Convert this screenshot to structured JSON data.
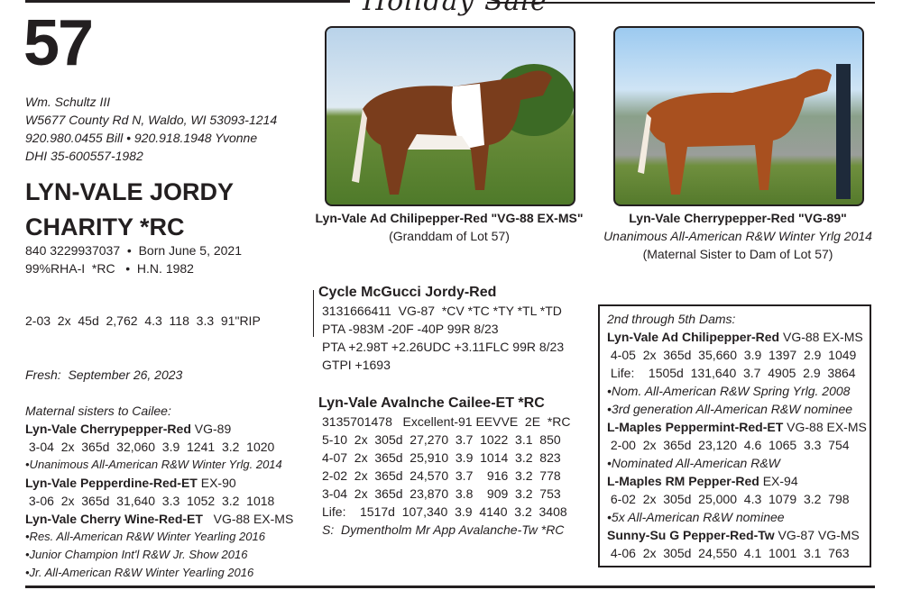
{
  "header": {
    "sale_title": "Holiday Sale"
  },
  "lot": {
    "number": "57"
  },
  "consignor": {
    "name": "Wm. Schultz III",
    "address": "W5677 County Rd N, Waldo, WI  53093-1214",
    "phones": "920.980.0455 Bill  •  920.918.1948 Yvonne",
    "dhi": "DHI 35-600557-1982"
  },
  "animal": {
    "name_line1": "LYN-VALE JORDY",
    "name_line2": "CHARITY *RC",
    "id_born": "840 3229937037  •  Born June 5, 2021",
    "breed": "99%RHA-I  *RC   •  H.N. 1982",
    "record": "2-03  2x  45d  2,762  4.3  118  3.3  91\"RIP",
    "fresh": "Fresh:  September 26, 2023"
  },
  "photos": [
    {
      "title": "Lyn-Vale Ad Chilipepper-Red \"VG-88 EX-MS\"",
      "sub": "",
      "note": "(Granddam of Lot 57)"
    },
    {
      "title": "Lyn-Vale Cherrypepper-Red \"VG-89\"",
      "sub": "Unanimous All-American R&W Winter Yrlg 2014",
      "note": "(Maternal Sister to Dam of Lot 57)"
    }
  ],
  "maternal_sisters": {
    "heading": "Maternal sisters to Cailee:",
    "items": [
      {
        "name": "Lyn-Vale Cherrypepper-Red",
        "score": " VG-89",
        "lines": [
          " 3-04  2x  365d  32,060  3.9  1241  3.2  1020"
        ],
        "notes": [
          "•Unanimous All-American R&W Winter Yrlg. 2014"
        ]
      },
      {
        "name": "Lyn-Vale Pepperdine-Red-ET",
        "score": " EX-90",
        "lines": [
          " 3-06  2x  365d  31,640  3.3  1052  3.2  1018"
        ],
        "notes": []
      },
      {
        "name": "Lyn-Vale Cherry Wine-Red-ET",
        "score": "   VG-88 EX-MS",
        "lines": [],
        "notes": [
          "•Res. All-American R&W Winter Yearling 2016",
          "•Junior Champion Int'l R&W Jr. Show 2016",
          "•Jr. All-American R&W Winter Yearling 2016"
        ]
      }
    ]
  },
  "sire": {
    "name": "Cycle McGucci Jordy-Red",
    "lines": [
      "3131666411  VG-87  *CV *TC *TY *TL *TD",
      "PTA -983M -20F -40P 99R 8/23",
      "PTA +2.98T +2.26UDC +3.11FLC 99R 8/23",
      "GTPI +1693"
    ]
  },
  "dam": {
    "name": "Lyn-Vale Avalnche Cailee-ET *RC",
    "lines": [
      "3135701478   Excellent-91 EEVVE  2E  *RC",
      "5-10  2x  305d  27,270  3.7  1022  3.1  850",
      "4-07  2x  365d  25,910  3.9  1014  3.2  823",
      "2-02  2x  365d  24,570  3.7    916  3.2  778",
      "3-04  2x  365d  23,870  3.8    909  3.2  753",
      "Life:    1517d  107,340  3.9  4140  3.2  3408"
    ],
    "sire_line": "S:  Dymentholm Mr App Avalanche-Tw *RC"
  },
  "dams_box": {
    "heading": "2nd through 5th Dams:",
    "items": [
      {
        "name": "Lyn-Vale Ad Chilipepper-Red",
        "score": " VG-88 EX-MS",
        "lines": [
          " 4-05  2x  365d  35,660  3.9  1397  2.9  1049",
          " Life:    1505d  131,640  3.7  4905  2.9  3864"
        ],
        "notes": [
          "•Nom. All-American R&W Spring Yrlg. 2008",
          "•3rd generation All-American R&W nominee"
        ]
      },
      {
        "name": "L-Maples Peppermint-Red-ET",
        "score": " VG-88 EX-MS",
        "lines": [
          " 2-00  2x  365d  23,120  4.6  1065  3.3  754"
        ],
        "notes": [
          "•Nominated All-American R&W"
        ]
      },
      {
        "name": "L-Maples RM Pepper-Red",
        "score": " EX-94",
        "lines": [
          " 6-02  2x  305d  25,000  4.3  1079  3.2  798"
        ],
        "notes": [
          "•5x All-American R&W nominee"
        ]
      },
      {
        "name": "Sunny-Su G Pepper-Red-Tw",
        "score": " VG-87 VG-MS",
        "lines": [
          " 4-06  2x  305d  24,550  4.1  1001  3.1  763"
        ],
        "notes": []
      }
    ]
  }
}
